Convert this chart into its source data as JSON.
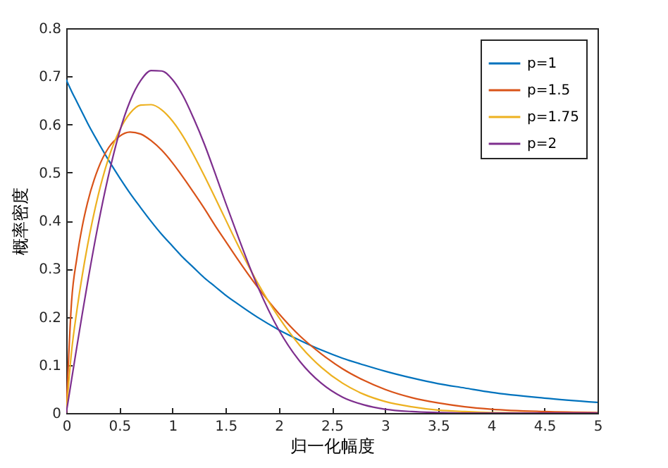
{
  "chart_data": {
    "type": "line",
    "xlabel": "归一化幅度",
    "ylabel": "概率密度",
    "x": [
      0,
      0.05,
      0.1,
      0.15,
      0.2,
      0.3,
      0.4,
      0.5,
      0.6,
      0.7,
      0.8,
      0.9,
      1,
      1.1,
      1.2,
      1.3,
      1.4,
      1.5,
      1.6,
      1.8,
      2,
      2.2,
      2.4,
      2.6,
      2.8,
      3,
      3.25,
      3.5,
      3.75,
      4,
      4.5,
      5
    ],
    "series": [
      {
        "name": "p=1",
        "color": "#0072bd",
        "values": [
          0.693,
          0.669,
          0.647,
          0.625,
          0.603,
          0.563,
          0.525,
          0.49,
          0.457,
          0.427,
          0.398,
          0.371,
          0.347,
          0.323,
          0.302,
          0.281,
          0.263,
          0.245,
          0.229,
          0.199,
          0.173,
          0.151,
          0.131,
          0.114,
          0.1,
          0.087,
          0.073,
          0.061,
          0.052,
          0.043,
          0.031,
          0.022
        ]
      },
      {
        "name": "p=1.5",
        "color": "#d95319",
        "values": [
          0,
          0.231,
          0.322,
          0.387,
          0.437,
          0.508,
          0.552,
          0.575,
          0.584,
          0.58,
          0.566,
          0.546,
          0.52,
          0.49,
          0.458,
          0.425,
          0.39,
          0.357,
          0.324,
          0.262,
          0.207,
          0.16,
          0.123,
          0.092,
          0.068,
          0.049,
          0.032,
          0.021,
          0.013,
          0.008,
          0.003,
          0.001
        ]
      },
      {
        "name": "p=1.75",
        "color": "#edb120",
        "values": [
          0,
          0.128,
          0.213,
          0.285,
          0.348,
          0.452,
          0.531,
          0.587,
          0.623,
          0.64,
          0.641,
          0.63,
          0.607,
          0.575,
          0.536,
          0.493,
          0.448,
          0.402,
          0.356,
          0.271,
          0.199,
          0.14,
          0.095,
          0.062,
          0.039,
          0.024,
          0.013,
          0.006,
          0.003,
          0.001,
          0,
          0
        ]
      },
      {
        "name": "p=2",
        "color": "#7e2f8e",
        "values": [
          0,
          0.069,
          0.138,
          0.205,
          0.27,
          0.391,
          0.496,
          0.583,
          0.648,
          0.691,
          0.712,
          0.711,
          0.693,
          0.659,
          0.612,
          0.559,
          0.499,
          0.437,
          0.377,
          0.264,
          0.173,
          0.107,
          0.062,
          0.033,
          0.017,
          0.008,
          0.003,
          0.001,
          0,
          0,
          0,
          0
        ]
      }
    ],
    "xlim": [
      0,
      5
    ],
    "xticks": [
      0,
      0.5,
      1,
      1.5,
      2,
      2.5,
      3,
      3.5,
      4,
      4.5,
      5
    ],
    "ylim": [
      0,
      0.8
    ],
    "yticks": [
      0,
      0.1,
      0.2,
      0.3,
      0.4,
      0.5,
      0.6,
      0.7,
      0.8
    ],
    "grid": false,
    "legend": "top right",
    "marker": "none",
    "line_style": "solid"
  }
}
